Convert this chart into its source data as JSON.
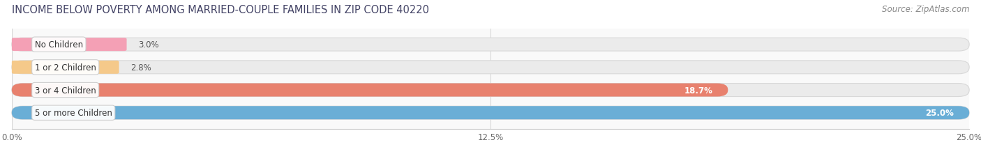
{
  "title": "INCOME BELOW POVERTY AMONG MARRIED-COUPLE FAMILIES IN ZIP CODE 40220",
  "source": "Source: ZipAtlas.com",
  "categories": [
    "No Children",
    "1 or 2 Children",
    "3 or 4 Children",
    "5 or more Children"
  ],
  "values": [
    3.0,
    2.8,
    18.7,
    25.0
  ],
  "bar_colors": [
    "#f4a0b5",
    "#f5c98a",
    "#e8816e",
    "#6aaed6"
  ],
  "xlim": [
    0,
    25.0
  ],
  "xticks": [
    0.0,
    12.5,
    25.0
  ],
  "xtick_labels": [
    "0.0%",
    "12.5%",
    "25.0%"
  ],
  "bar_height": 0.58,
  "bar_gap": 0.42,
  "value_inside_threshold": 10.0,
  "title_color": "#444466",
  "source_color": "#888888",
  "title_fontsize": 10.5,
  "source_fontsize": 8.5,
  "tick_fontsize": 8.5,
  "cat_fontsize": 8.5,
  "val_fontsize": 8.5,
  "bg_bar_color": "#ebebeb",
  "bg_bar_edge": "#d8d8d8",
  "fig_bg": "#ffffff",
  "ax_bg": "#f9f9f9"
}
